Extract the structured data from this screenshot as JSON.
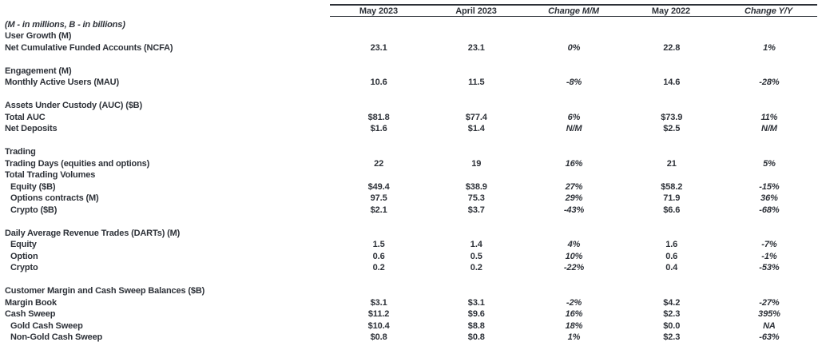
{
  "table": {
    "columns": [
      "May 2023",
      "April 2023",
      "Change M/M",
      "May 2022",
      "Change Y/Y"
    ],
    "italic_columns": [
      2,
      4
    ],
    "rows": [
      {
        "type": "note",
        "label": "(M - in millions, B - in billions)"
      },
      {
        "type": "section",
        "label": "User Growth (M)"
      },
      {
        "type": "data",
        "label": "Net Cumulative Funded Accounts (NCFA)",
        "values": [
          "23.1",
          "23.1",
          "0%",
          "22.8",
          "1%"
        ]
      },
      {
        "type": "blank"
      },
      {
        "type": "section",
        "label": "Engagement (M)"
      },
      {
        "type": "data",
        "label": "Monthly Active Users (MAU)",
        "values": [
          "10.6",
          "11.5",
          "-8%",
          "14.6",
          "-28%"
        ]
      },
      {
        "type": "blank"
      },
      {
        "type": "section",
        "label": "Assets Under Custody (AUC) ($B)"
      },
      {
        "type": "data",
        "label": "Total AUC",
        "values": [
          "$81.8",
          "$77.4",
          "6%",
          "$73.9",
          "11%"
        ]
      },
      {
        "type": "data",
        "label": "Net Deposits",
        "values": [
          "$1.6",
          "$1.4",
          "N/M",
          "$2.5",
          "N/M"
        ]
      },
      {
        "type": "blank"
      },
      {
        "type": "section",
        "label": "Trading"
      },
      {
        "type": "data",
        "label": "Trading Days (equities and options)",
        "values": [
          "22",
          "19",
          "16%",
          "21",
          "5%"
        ]
      },
      {
        "type": "section",
        "label": "Total Trading Volumes"
      },
      {
        "type": "data",
        "label": "Equity ($B)",
        "indent": true,
        "values": [
          "$49.4",
          "$38.9",
          "27%",
          "$58.2",
          "-15%"
        ]
      },
      {
        "type": "data",
        "label": "Options contracts (M)",
        "indent": true,
        "values": [
          "97.5",
          "75.3",
          "29%",
          "71.9",
          "36%"
        ]
      },
      {
        "type": "data",
        "label": "Crypto ($B)",
        "indent": true,
        "values": [
          "$2.1",
          "$3.7",
          "-43%",
          "$6.6",
          "-68%"
        ]
      },
      {
        "type": "blank"
      },
      {
        "type": "section",
        "label": "Daily Average Revenue Trades (DARTs) (M)"
      },
      {
        "type": "data",
        "label": "Equity",
        "indent": true,
        "values": [
          "1.5",
          "1.4",
          "4%",
          "1.6",
          "-7%"
        ]
      },
      {
        "type": "data",
        "label": "Option",
        "indent": true,
        "values": [
          "0.6",
          "0.5",
          "10%",
          "0.6",
          "-1%"
        ]
      },
      {
        "type": "data",
        "label": "Crypto",
        "indent": true,
        "values": [
          "0.2",
          "0.2",
          "-22%",
          "0.4",
          "-53%"
        ]
      },
      {
        "type": "blank"
      },
      {
        "type": "section",
        "label": "Customer Margin and Cash Sweep Balances ($B)"
      },
      {
        "type": "data",
        "label": "Margin Book",
        "values": [
          "$3.1",
          "$3.1",
          "-2%",
          "$4.2",
          "-27%"
        ]
      },
      {
        "type": "data",
        "label": "Cash Sweep",
        "values": [
          "$11.2",
          "$9.6",
          "16%",
          "$2.3",
          "395%"
        ]
      },
      {
        "type": "data",
        "label": "Gold Cash Sweep",
        "indent": true,
        "values": [
          "$10.4",
          "$8.8",
          "18%",
          "$0.0",
          "NA"
        ]
      },
      {
        "type": "data",
        "label": "Non-Gold Cash Sweep",
        "indent": true,
        "values": [
          "$0.8",
          "$0.8",
          "1%",
          "$2.3",
          "-63%"
        ]
      }
    ]
  },
  "colors": {
    "background": "#ffffff",
    "text": "#2d3138",
    "rule": "#2d3138"
  }
}
